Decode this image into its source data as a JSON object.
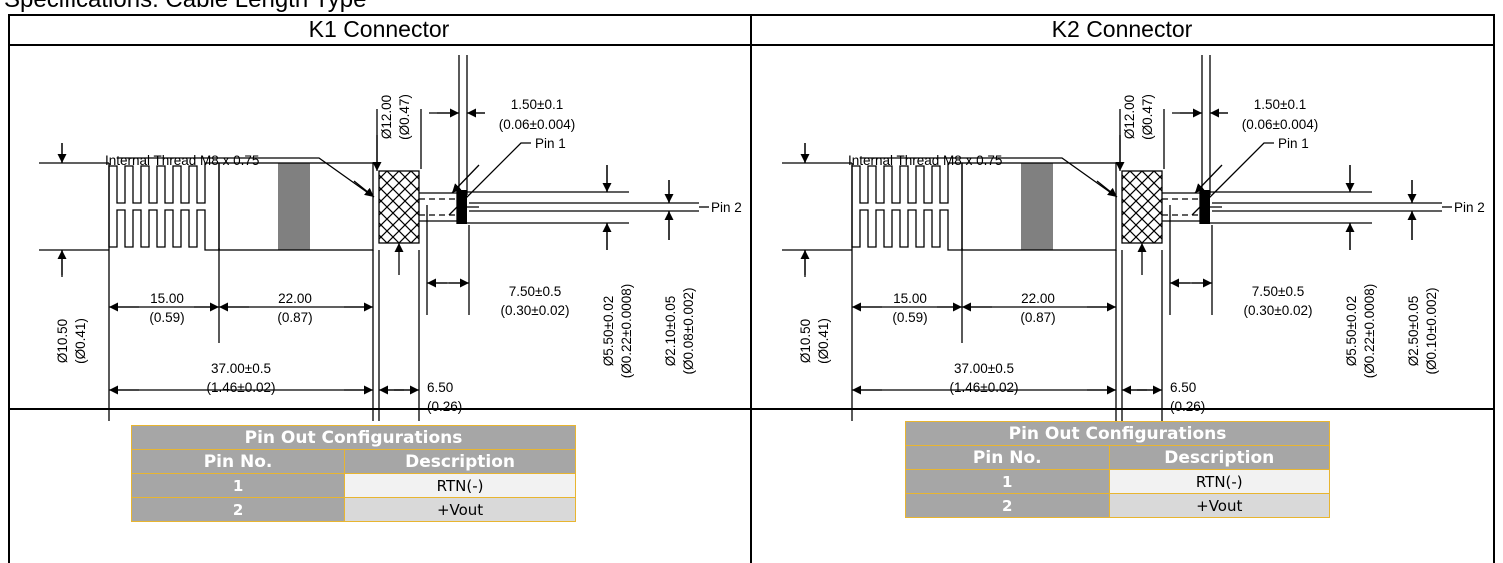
{
  "header_text": "Specifications: Cable Length Type",
  "connectors": [
    {
      "title": "K1 Connector",
      "labels": {
        "thread": "Internal Thread M8 x 0.75",
        "pin1": "Pin 1",
        "pin2": "Pin 2",
        "d_knurl_mm": "Ø12.00",
        "d_knurl_in": "(Ø0.47)",
        "gap_mm": "1.50±0.1",
        "gap_in": "(0.06±0.004)",
        "d_body_mm": "Ø10.50",
        "d_body_in": "(Ø0.41)",
        "grip_len_mm": "15.00",
        "grip_len_in": "(0.59)",
        "body_len_mm": "22.00",
        "body_len_in": "(0.87)",
        "total_len_mm": "37.00±0.5",
        "total_len_in": "(1.46±0.02)",
        "knurl_len_mm": "6.50",
        "knurl_len_in": "(0.26)",
        "sleeve_len_mm": "7.50±0.5",
        "sleeve_len_in": "(0.30±0.02)",
        "d_sleeve_mm": "Ø5.50±0.02",
        "d_sleeve_in": "(Ø0.22±0.0008)",
        "d_pin_mm": "Ø2.10±0.05",
        "d_pin_in": "(Ø0.08±0.002)"
      },
      "table": {
        "title": "Pin Out Configurations",
        "col_pin": "Pin No.",
        "col_desc": "Description",
        "rows": [
          {
            "pin": "1",
            "desc": "RTN(-)"
          },
          {
            "pin": "2",
            "desc": "+Vout"
          }
        ]
      }
    },
    {
      "title": "K2 Connector",
      "labels": {
        "thread": "Internal Thread M8 x 0.75",
        "pin1": "Pin 1",
        "pin2": "Pin 2",
        "d_knurl_mm": "Ø12.00",
        "d_knurl_in": "(Ø0.47)",
        "gap_mm": "1.50±0.1",
        "gap_in": "(0.06±0.004)",
        "d_body_mm": "Ø10.50",
        "d_body_in": "(Ø0.41)",
        "grip_len_mm": "15.00",
        "grip_len_in": "(0.59)",
        "body_len_mm": "22.00",
        "body_len_in": "(0.87)",
        "total_len_mm": "37.00±0.5",
        "total_len_in": "(1.46±0.02)",
        "knurl_len_mm": "6.50",
        "knurl_len_in": "(0.26)",
        "sleeve_len_mm": "7.50±0.5",
        "sleeve_len_in": "(0.30±0.02)",
        "d_sleeve_mm": "Ø5.50±0.02",
        "d_sleeve_in": "(Ø0.22±0.0008)",
        "d_pin_mm": "Ø2.50±0.05",
        "d_pin_in": "(Ø0.10±0.002)"
      },
      "table": {
        "title": "Pin Out Configurations",
        "col_pin": "Pin No.",
        "col_desc": "Description",
        "rows": [
          {
            "pin": "1",
            "desc": "RTN(-)"
          },
          {
            "pin": "2",
            "desc": "+Vout"
          }
        ]
      }
    }
  ]
}
